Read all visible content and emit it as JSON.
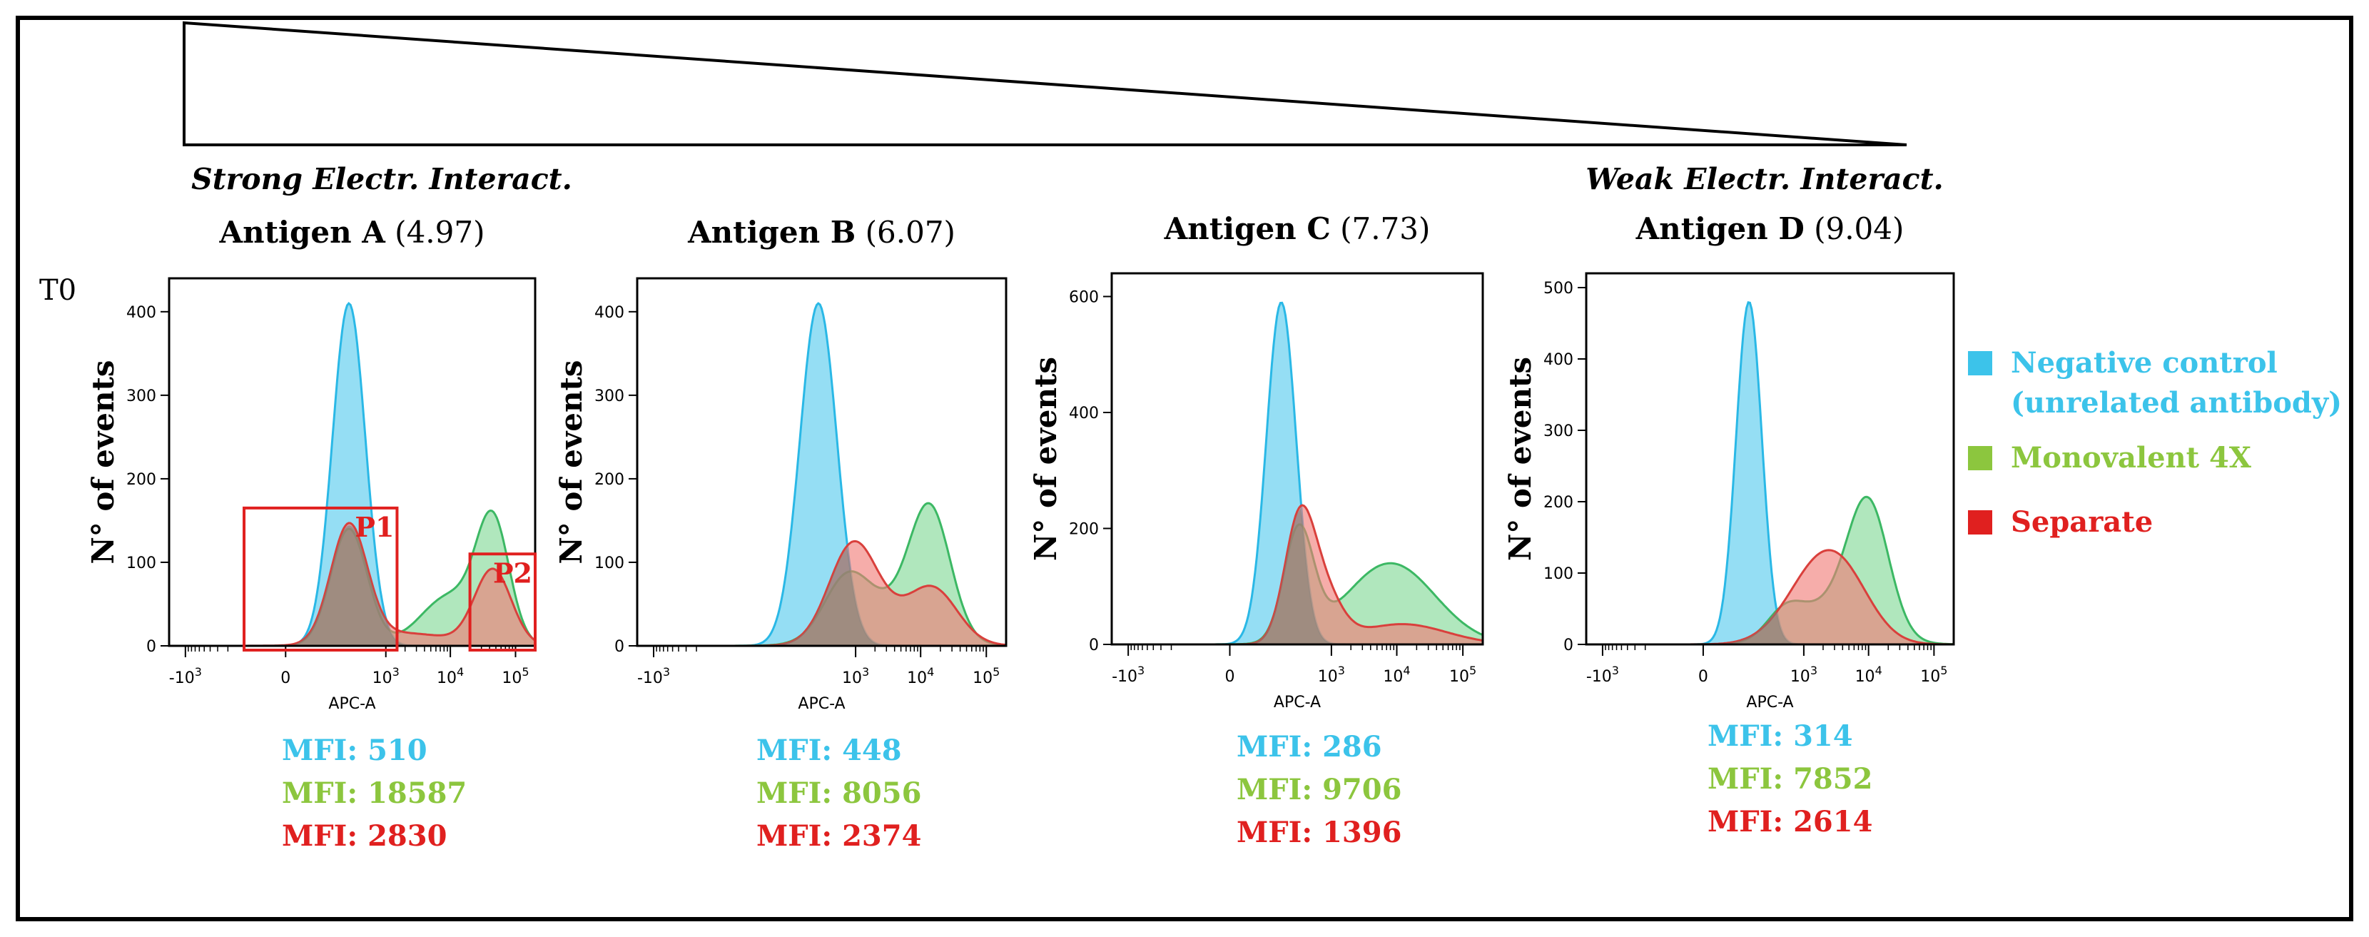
{
  "figure": {
    "timepoint_label": "T0",
    "strong_label": "Strong Electr. Interact.",
    "weak_label": "Weak Electr. Interact.",
    "legend": [
      {
        "label_lines": [
          "Negative control",
          "(unrelated antibody)"
        ],
        "color": "#3cc3ea"
      },
      {
        "label_lines": [
          "Monovalent 4X"
        ],
        "color": "#8cc63e"
      },
      {
        "label_lines": [
          "Separate"
        ],
        "color": "#e0201f"
      }
    ],
    "colors": {
      "neg_fill": "#8fdcf3",
      "neg_line": "#2ab8e6",
      "mono_fill": "#7fd894",
      "mono_line": "#3cb864",
      "sep_fill": "#f07a76",
      "sep_line": "#d9403c",
      "overlap_fill": "#7b7b74",
      "gate": "#e0201f"
    }
  },
  "chart_data": [
    {
      "type": "histogram",
      "title": "Antigen A",
      "title_value": "(4.97)",
      "ylabel": "N° of events",
      "xlabel": "APC-A",
      "x_ticks": [
        "-10^3",
        "0",
        "10^3",
        "10^4",
        "10^5"
      ],
      "y_ticks": [
        0,
        100,
        200,
        300,
        400
      ],
      "ylim": [
        0,
        440
      ],
      "x_scale": "biexponential",
      "series": [
        {
          "name": "Negative control (unrelated antibody)",
          "peaks": [
            {
              "x": 250,
              "y": 410,
              "width": 0.09
            }
          ]
        },
        {
          "name": "Monovalent 4X",
          "peaks": [
            {
              "x": 250,
              "y": 140,
              "width": 0.1
            },
            {
              "x": 10000,
              "y": 60,
              "width": 0.16
            },
            {
              "x": 45000,
              "y": 140,
              "width": 0.09
            }
          ]
        },
        {
          "name": "Separate",
          "peaks": [
            {
              "x": 250,
              "y": 140,
              "width": 0.1
            },
            {
              "x": 2000,
              "y": 15,
              "width": 0.25
            },
            {
              "x": 45000,
              "y": 90,
              "width": 0.1
            }
          ]
        }
      ],
      "gates": [
        {
          "name": "P1",
          "x_range": [
            -100,
            1500
          ],
          "y_top": 165
        },
        {
          "name": "P2",
          "x_range": [
            20000,
            200000
          ],
          "y_top": 110
        }
      ],
      "mfi": [
        {
          "label": "MFI: 510",
          "series": "Negative control"
        },
        {
          "label": "MFI: 18587",
          "series": "Monovalent 4X"
        },
        {
          "label": "MFI: 2830",
          "series": "Separate"
        }
      ]
    },
    {
      "type": "histogram",
      "title": "Antigen B",
      "title_value": "(6.07)",
      "ylabel": "N° of events",
      "xlabel": "APC-A",
      "x_ticks": [
        "-10^3",
        "10^3",
        "10^4",
        "10^5"
      ],
      "y_ticks": [
        0,
        100,
        200,
        300,
        400
      ],
      "ylim": [
        0,
        440
      ],
      "x_scale": "biexponential",
      "series": [
        {
          "name": "Negative control (unrelated antibody)",
          "peaks": [
            {
              "x": 250,
              "y": 410,
              "width": 0.1
            }
          ]
        },
        {
          "name": "Monovalent 4X",
          "peaks": [
            {
              "x": 700,
              "y": 60,
              "width": 0.12
            },
            {
              "x": 3000,
              "y": 45,
              "width": 0.22
            },
            {
              "x": 14000,
              "y": 145,
              "width": 0.11
            }
          ]
        },
        {
          "name": "Separate",
          "peaks": [
            {
              "x": 900,
              "y": 110,
              "width": 0.13
            },
            {
              "x": 4000,
              "y": 25,
              "width": 0.22
            },
            {
              "x": 16000,
              "y": 55,
              "width": 0.13
            }
          ]
        }
      ],
      "mfi": [
        {
          "label": "MFI: 448",
          "series": "Negative control"
        },
        {
          "label": "MFI: 8056",
          "series": "Monovalent 4X"
        },
        {
          "label": "MFI: 2374",
          "series": "Separate"
        }
      ]
    },
    {
      "type": "histogram",
      "title": "Antigen C",
      "title_value": "(7.73)",
      "ylabel": "N° of events",
      "xlabel": "APC-A",
      "x_ticks": [
        "-10^3",
        "0",
        "10^3",
        "10^4",
        "10^5"
      ],
      "y_ticks": [
        0,
        200,
        400,
        600
      ],
      "ylim": [
        0,
        640
      ],
      "x_scale": "biexponential",
      "series": [
        {
          "name": "Negative control (unrelated antibody)",
          "peaks": [
            {
              "x": 150,
              "y": 590,
              "width": 0.08
            }
          ]
        },
        {
          "name": "Monovalent 4X",
          "peaks": [
            {
              "x": 300,
              "y": 190,
              "width": 0.08
            },
            {
              "x": 8000,
              "y": 140,
              "width": 0.24
            }
          ]
        },
        {
          "name": "Separate",
          "peaks": [
            {
              "x": 300,
              "y": 190,
              "width": 0.08
            },
            {
              "x": 700,
              "y": 90,
              "width": 0.1
            },
            {
              "x": 12000,
              "y": 35,
              "width": 0.24
            }
          ]
        }
      ],
      "mfi": [
        {
          "label": "MFI: 286",
          "series": "Negative control"
        },
        {
          "label": "MFI: 9706",
          "series": "Monovalent 4X"
        },
        {
          "label": "MFI: 1396",
          "series": "Separate"
        }
      ]
    },
    {
      "type": "histogram",
      "title": "Antigen D",
      "title_value": "(9.04)",
      "ylabel": "N° of events",
      "xlabel": "APC-A",
      "x_ticks": [
        "-10^3",
        "0",
        "10^3",
        "10^4",
        "10^5"
      ],
      "y_ticks": [
        0,
        100,
        200,
        300,
        400,
        500
      ],
      "ylim": [
        0,
        520
      ],
      "x_scale": "biexponential",
      "series": [
        {
          "name": "Negative control (unrelated antibody)",
          "peaks": [
            {
              "x": 120,
              "y": 480,
              "width": 0.07
            }
          ]
        },
        {
          "name": "Monovalent 4X",
          "peaks": [
            {
              "x": 500,
              "y": 35,
              "width": 0.1
            },
            {
              "x": 3000,
              "y": 55,
              "width": 0.2
            },
            {
              "x": 10000,
              "y": 170,
              "width": 0.11
            }
          ]
        },
        {
          "name": "Separate",
          "peaks": [
            {
              "x": 1800,
              "y": 105,
              "width": 0.18
            },
            {
              "x": 5000,
              "y": 40,
              "width": 0.15
            }
          ]
        }
      ],
      "mfi": [
        {
          "label": "MFI: 314",
          "series": "Negative control"
        },
        {
          "label": "MFI: 7852",
          "series": "Monovalent 4X"
        },
        {
          "label": "MFI: 2614",
          "series": "Separate"
        }
      ]
    }
  ]
}
